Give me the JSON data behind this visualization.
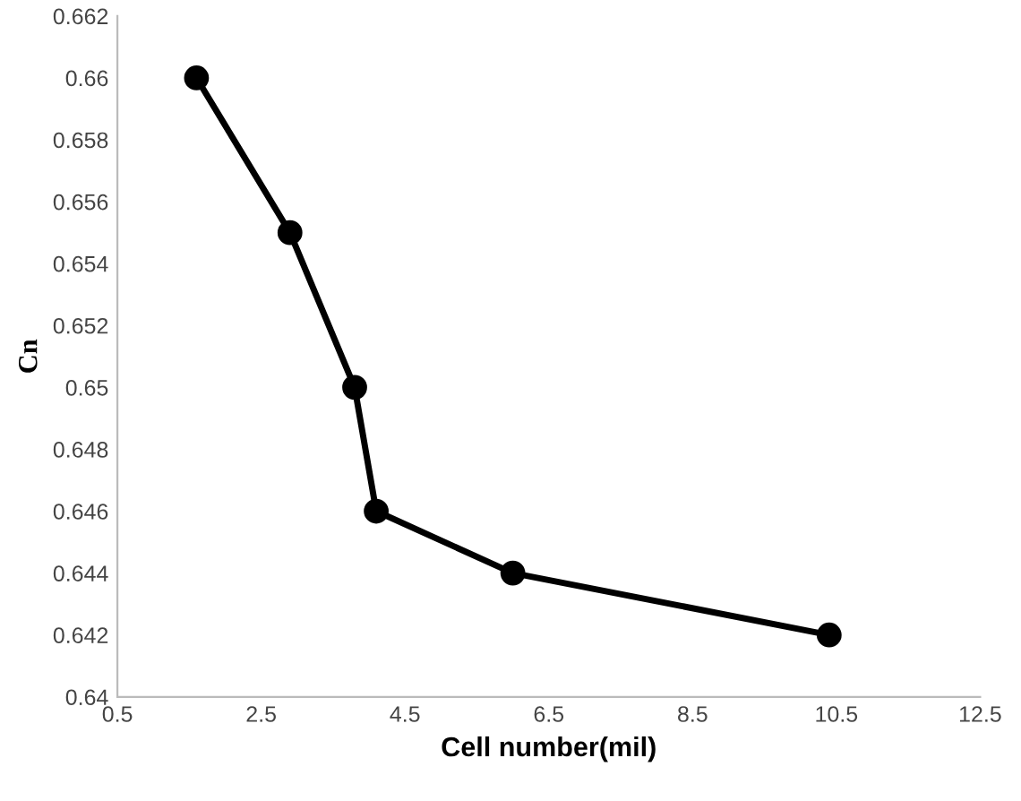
{
  "chart_data": {
    "type": "line",
    "xlabel": "Cell number(mil)",
    "ylabel": "Cn",
    "x": [
      1.6,
      2.9,
      3.8,
      4.1,
      6.0,
      10.4
    ],
    "series": [
      {
        "color": "#000000",
        "values": [
          0.66,
          0.655,
          0.65,
          0.646,
          0.644,
          0.642
        ]
      }
    ],
    "xlim": [
      0.5,
      12.5
    ],
    "xticks": [
      0.5,
      2.5,
      4.5,
      6.5,
      8.5,
      10.5,
      12.5
    ],
    "ylim": [
      0.64,
      0.662
    ],
    "yticks": [
      0.64,
      0.642,
      0.644,
      0.646,
      0.648,
      0.65,
      0.652,
      0.654,
      0.656,
      0.658,
      0.66,
      0.662
    ],
    "grid": false,
    "marker": "circle",
    "line_style": "solid"
  }
}
